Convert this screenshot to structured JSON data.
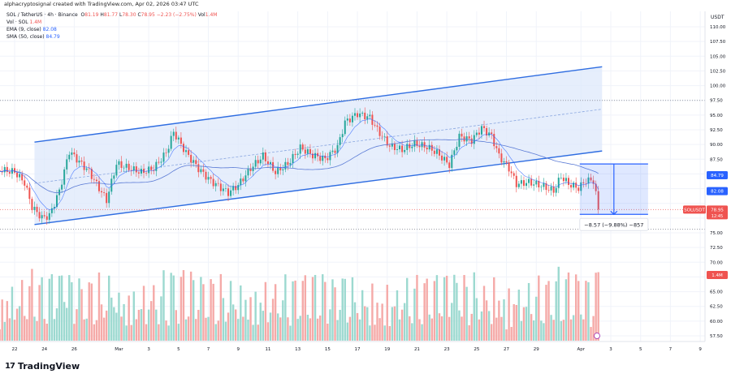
{
  "credit": "alphacryptosignal created with TradingView.com, Apr 02, 2026 03:47 UTC",
  "legend": {
    "symbol": "SOL / TetherUS · 4h · Binance",
    "o_label": "O",
    "o": "81.19",
    "h_label": "H",
    "h": "81.77",
    "l_label": "L",
    "l": "78.30",
    "c_label": "C",
    "c": "78.95",
    "change": "−2.23 (−2.75%)",
    "vol_label": "Vol",
    "vol": "1.4M",
    "vol_indicator": "Vol · SOL",
    "vol_indicator_value": "1.4M",
    "ema": "EMA (9, close)",
    "ema_value": "82.08",
    "sma": "SMA (50, close)",
    "sma_value": "84.79"
  },
  "brand": "TradingView",
  "colors": {
    "up": "#26a69a",
    "down": "#ef5350",
    "vol_up": "#9cd9d0",
    "vol_down": "#f5aaa8",
    "ema": "#2962ff",
    "sma": "#5b7bd5",
    "channel": "#2f6de1",
    "channel_fill": "#dbe7fb"
  },
  "chart_data": {
    "type": "candlestick",
    "timeframe": "4h",
    "currency": "USDT",
    "price_axis": {
      "min": 57.5,
      "max": 110,
      "step": 2.5,
      "ticks": [
        "110.00",
        "107.50",
        "105.00",
        "102.50",
        "100.00",
        "97.50",
        "95.00",
        "92.50",
        "90.00",
        "87.50",
        "85.00",
        "82.50",
        "80.00",
        "77.50",
        "75.00",
        "72.50",
        "70.00",
        "67.50",
        "65.00",
        "62.50",
        "60.00",
        "57.50"
      ]
    },
    "time_axis": {
      "ticks": [
        [
          "2026-02-22",
          "22"
        ],
        [
          "2026-02-24",
          "24"
        ],
        [
          "2026-02-26",
          "26"
        ],
        [
          "2026-03-01",
          "Mar"
        ],
        [
          "2026-03-03",
          "3"
        ],
        [
          "2026-03-05",
          "5"
        ],
        [
          "2026-03-07",
          "7"
        ],
        [
          "2026-03-09",
          "9"
        ],
        [
          "2026-03-11",
          "11"
        ],
        [
          "2026-03-13",
          "13"
        ],
        [
          "2026-03-15",
          "15"
        ],
        [
          "2026-03-17",
          "17"
        ],
        [
          "2026-03-19",
          "19"
        ],
        [
          "2026-03-21",
          "21"
        ],
        [
          "2026-03-23",
          "23"
        ],
        [
          "2026-03-25",
          "25"
        ],
        [
          "2026-03-27",
          "27"
        ],
        [
          "2026-03-29",
          "29"
        ],
        [
          "2026-04-01",
          "Apr"
        ],
        [
          "2026-04-03",
          "3"
        ],
        [
          "2026-04-05",
          "5"
        ],
        [
          "2026-04-07",
          "7"
        ],
        [
          "2026-04-09",
          "9"
        ]
      ]
    },
    "closes": [
      [
        "2026-02-21T00:00",
        85.6
      ],
      [
        "2026-02-22T00:00",
        85.3
      ],
      [
        "2026-02-22T16:00",
        83.5
      ],
      [
        "2026-02-23T04:00",
        79.4
      ],
      [
        "2026-02-23T20:00",
        77.6
      ],
      [
        "2026-02-24T08:00",
        78
      ],
      [
        "2026-02-25T00:00",
        82.2
      ],
      [
        "2026-02-25T16:00",
        89
      ],
      [
        "2026-02-26T04:00",
        87.7
      ],
      [
        "2026-02-27T00:00",
        85.6
      ],
      [
        "2026-02-27T12:00",
        83.5
      ],
      [
        "2026-02-28T04:00",
        80.8
      ],
      [
        "2026-02-28T20:00",
        87
      ],
      [
        "2026-03-01T16:00",
        86.3
      ],
      [
        "2026-03-02T12:00",
        85.6
      ],
      [
        "2026-03-03T08:00",
        86.3
      ],
      [
        "2026-03-04T04:00",
        89
      ],
      [
        "2026-03-04T16:00",
        92.5
      ],
      [
        "2026-03-05T12:00",
        89
      ],
      [
        "2026-03-06T08:00",
        86.3
      ],
      [
        "2026-03-07T04:00",
        84.2
      ],
      [
        "2026-03-08T08:00",
        82.2
      ],
      [
        "2026-03-09T00:00",
        83.5
      ],
      [
        "2026-03-09T20:00",
        86.3
      ],
      [
        "2026-03-10T16:00",
        88.4
      ],
      [
        "2026-03-11T12:00",
        85.6
      ],
      [
        "2026-03-12T08:00",
        87
      ],
      [
        "2026-03-13T04:00",
        89.7
      ],
      [
        "2026-03-14T00:00",
        88.4
      ],
      [
        "2026-03-14T20:00",
        87.7
      ],
      [
        "2026-03-15T16:00",
        89.7
      ],
      [
        "2026-03-16T04:00",
        93.9
      ],
      [
        "2026-03-17T00:00",
        95.3
      ],
      [
        "2026-03-17T20:00",
        94.6
      ],
      [
        "2026-03-18T08:00",
        92.5
      ],
      [
        "2026-03-19T04:00",
        89.7
      ],
      [
        "2026-03-20T00:00",
        89
      ],
      [
        "2026-03-20T20:00",
        90
      ],
      [
        "2026-03-21T16:00",
        89.4
      ],
      [
        "2026-03-22T08:00",
        88.4
      ],
      [
        "2026-03-23T04:00",
        86.3
      ],
      [
        "2026-03-23T20:00",
        91.1
      ],
      [
        "2026-03-24T16:00",
        90.4
      ],
      [
        "2026-03-25T08:00",
        92.5
      ],
      [
        "2026-03-26T00:00",
        91.1
      ],
      [
        "2026-03-26T12:00",
        87.7
      ],
      [
        "2026-03-27T04:00",
        85.6
      ],
      [
        "2026-03-27T16:00",
        82.9
      ],
      [
        "2026-03-28T12:00",
        83.2
      ],
      [
        "2026-03-29T08:00",
        82.6
      ],
      [
        "2026-03-30T04:00",
        81.7
      ],
      [
        "2026-03-30T16:00",
        84.2
      ],
      [
        "2026-03-31T04:00",
        82.9
      ],
      [
        "2026-03-31T20:00",
        82.2
      ],
      [
        "2026-04-01T08:00",
        83.5
      ],
      [
        "2026-04-01T20:00",
        83.5
      ],
      [
        "2026-04-02T04:00",
        78.95
      ]
    ],
    "channel": {
      "lower": [
        [
          "2026-02-23T08:00",
          76.4
        ],
        [
          "2026-04-02T10:00",
          88.9
        ]
      ],
      "upper": [
        [
          "2026-02-23T08:00",
          90.4
        ],
        [
          "2026-04-02T10:00",
          103.2
        ]
      ],
      "mid": [
        [
          "2026-02-23T08:00",
          83.4
        ],
        [
          "2026-04-02T10:00",
          96.0
        ]
      ]
    },
    "horizontal_levels": [
      97.5,
      75.6
    ],
    "measure": {
      "from": [
        "2026-03-31T22:00",
        86.7
      ],
      "to": [
        "2026-04-05T12:00",
        78.13
      ],
      "label": "−8.57 (−9.88%) −857"
    },
    "badges": [
      {
        "label": "84.79",
        "price": 84.79,
        "color": "#2962ff"
      },
      {
        "label": "82.08",
        "price": 82.08,
        "color": "#2962ff"
      }
    ],
    "last_price": {
      "symbol": "SOLUSDT",
      "price": "78.95",
      "countdown": "12:45",
      "value": 78.95
    },
    "volume_badge": "1.4M"
  }
}
